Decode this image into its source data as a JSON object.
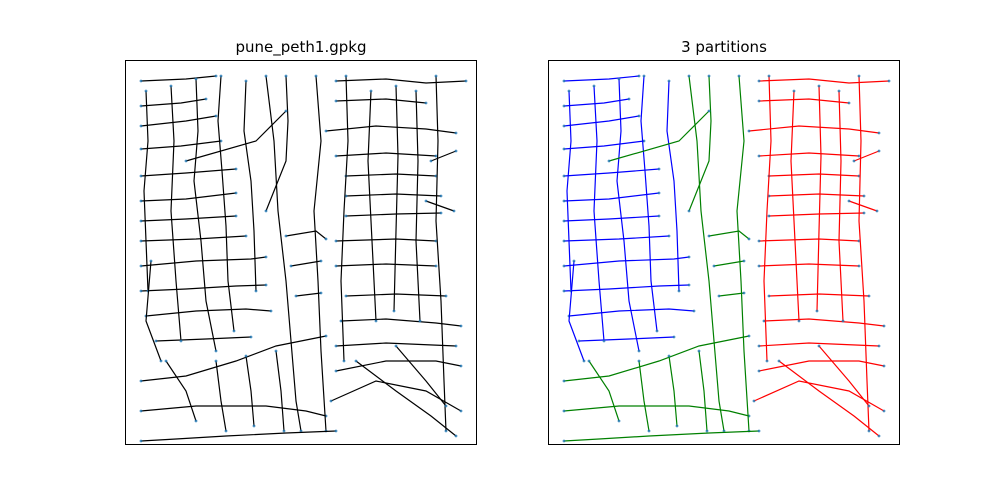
{
  "panels": [
    {
      "title": "pune_peth1.gpkg"
    },
    {
      "title": "3 partitions"
    }
  ],
  "colors": {
    "road_network": "#000000",
    "nodes": "#1f77b4",
    "partition_blue": "#0000ff",
    "partition_green": "#008000",
    "partition_red": "#ff0000"
  }
}
